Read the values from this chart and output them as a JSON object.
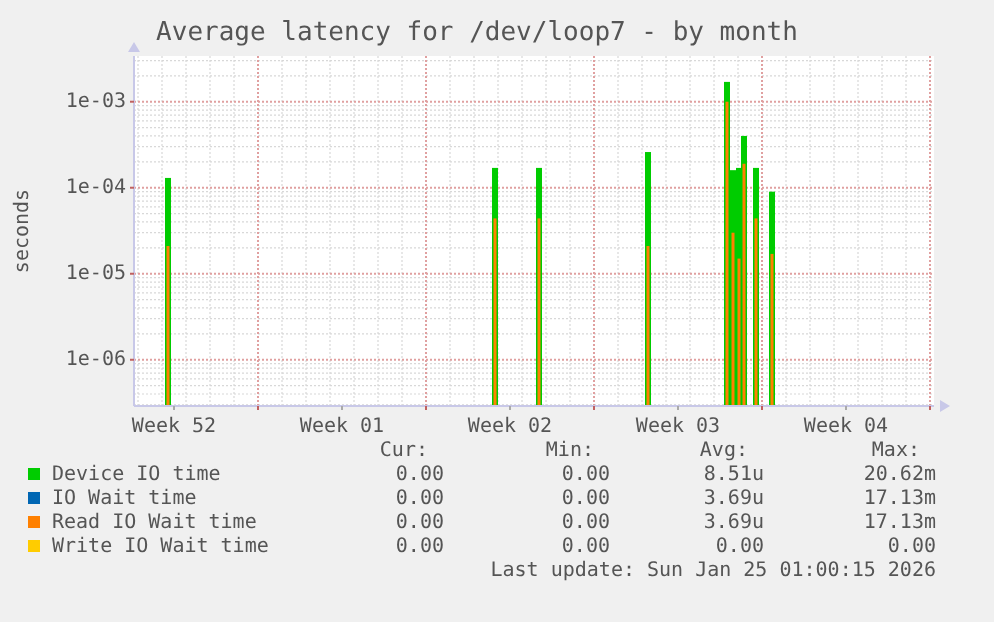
{
  "chart_data": {
    "type": "bar",
    "title": "Average latency for /dev/loop7 - by month",
    "ylabel": "seconds",
    "log": "y",
    "grid": true,
    "legend": "bottom",
    "xlim": [
      "2025-12-23T20:00",
      "2026-01-26T04:00"
    ],
    "xticks": [
      {
        "value": "2025-12-25T12:00",
        "label": "Week 52"
      },
      {
        "value": "2026-01-01T12:00",
        "label": "Week 01"
      },
      {
        "value": "2026-01-08T12:00",
        "label": "Week 02"
      },
      {
        "value": "2026-01-15T12:00",
        "label": "Week 03"
      },
      {
        "value": "2026-01-22T12:00",
        "label": "Week 04"
      },
      {
        "value": "2025-12-29",
        "label": null
      },
      {
        "value": "2026-01-05",
        "label": null
      },
      {
        "value": "2026-01-12",
        "label": null
      },
      {
        "value": "2026-01-19",
        "label": null
      },
      {
        "value": "2026-01-26",
        "label": null
      }
    ],
    "ylim": [
      2.9e-07,
      0.0034
    ],
    "yticks": [
      {
        "value": 1e-06,
        "label": "1e-06"
      },
      {
        "value": 1e-05,
        "label": "1e-05"
      },
      {
        "value": 0.0001,
        "label": "1e-04"
      },
      {
        "value": 0.001,
        "label": "1e-03"
      }
    ],
    "x": [
      "2025-12-25T06:00",
      "2026-01-07T21:00",
      "2026-01-09T17:00",
      "2026-01-14T06:00",
      "2026-01-17T13:00",
      "2026-01-17T19:00",
      "2026-01-18T01:00",
      "2026-01-18T06:00",
      "2026-01-18T18:00",
      "2026-01-19T10:00"
    ],
    "series": [
      {
        "name": "Device IO time",
        "color": "#00cc00",
        "values": [
          0.00013,
          0.00017,
          0.00017,
          0.00026,
          0.0017,
          0.00016,
          0.00017,
          0.0004,
          0.00017,
          9e-05
        ]
      },
      {
        "name": "IO Wait time",
        "color": "#0066b3",
        "values": [
          null,
          null,
          null,
          null,
          null,
          null,
          null,
          null,
          null,
          null
        ]
      },
      {
        "name": "Read IO Wait time",
        "color": "#ff8000",
        "values": [
          2.1e-05,
          4.4e-05,
          4.4e-05,
          2.1e-05,
          0.001,
          3e-05,
          1.5e-05,
          0.00019,
          4.4e-05,
          1.7e-05
        ]
      },
      {
        "name": "Write IO Wait time",
        "color": "#ffcc00",
        "values": [
          null,
          null,
          null,
          null,
          null,
          null,
          null,
          null,
          null,
          null
        ]
      }
    ],
    "annotations": [
      "Cur:",
      "Min:",
      "Avg:",
      "Max:",
      "0.00",
      "0.00",
      "8.51u",
      "20.62m",
      "0.00",
      "0.00",
      "3.69u",
      "17.13m",
      "0.00",
      "0.00",
      "3.69u",
      "17.13m",
      "0.00",
      "0.00",
      "0.00",
      "0.00",
      "Last update: Sun Jan 25 01:00:15 2026"
    ]
  }
}
